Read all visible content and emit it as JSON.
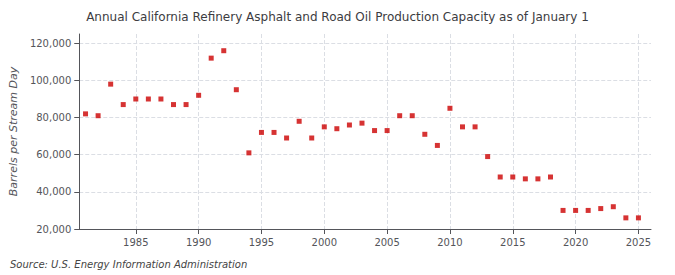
{
  "chart_data": {
    "type": "scatter",
    "title": "Annual California Refinery Asphalt and Road Oil Production Capacity as of January 1",
    "ylabel": "Barrels per Stream Day",
    "annotation": "Source: U.S. Energy Information Administration",
    "color": "#cc0000",
    "marker": "square",
    "x": [
      1981,
      1982,
      1983,
      1984,
      1985,
      1986,
      1987,
      1988,
      1989,
      1990,
      1991,
      1992,
      1993,
      1994,
      1995,
      1996,
      1997,
      1998,
      1999,
      2000,
      2001,
      2002,
      2003,
      2004,
      2005,
      2006,
      2007,
      2008,
      2009,
      2010,
      2011,
      2012,
      2013,
      2014,
      2015,
      2016,
      2017,
      2018,
      2019,
      2020,
      2021,
      2022,
      2023,
      2024,
      2025
    ],
    "values": [
      82000,
      81000,
      98000,
      87000,
      90000,
      90000,
      90000,
      87000,
      87000,
      92000,
      112000,
      116000,
      95000,
      61000,
      72000,
      72000,
      69000,
      78000,
      69000,
      75000,
      74000,
      76000,
      77000,
      73000,
      73000,
      81000,
      81000,
      71000,
      65000,
      85000,
      75000,
      75000,
      59000,
      48000,
      48000,
      47000,
      47000,
      48000,
      30000,
      30000,
      30000,
      31000,
      32000,
      26000,
      26000
    ],
    "xlim": [
      1980.5,
      2026
    ],
    "xticks": [
      1985,
      1990,
      1995,
      2000,
      2005,
      2010,
      2015,
      2020,
      2025
    ],
    "ylim": [
      20000,
      125000
    ],
    "yticks": [
      {
        "value": 20000,
        "label": "20,000"
      },
      {
        "value": 40000,
        "label": "40,000"
      },
      {
        "value": 60000,
        "label": "60,000"
      },
      {
        "value": 80000,
        "label": "80,000"
      },
      {
        "value": 100000,
        "label": "100,000"
      },
      {
        "value": 120000,
        "label": "120,000"
      }
    ],
    "grid": true
  }
}
